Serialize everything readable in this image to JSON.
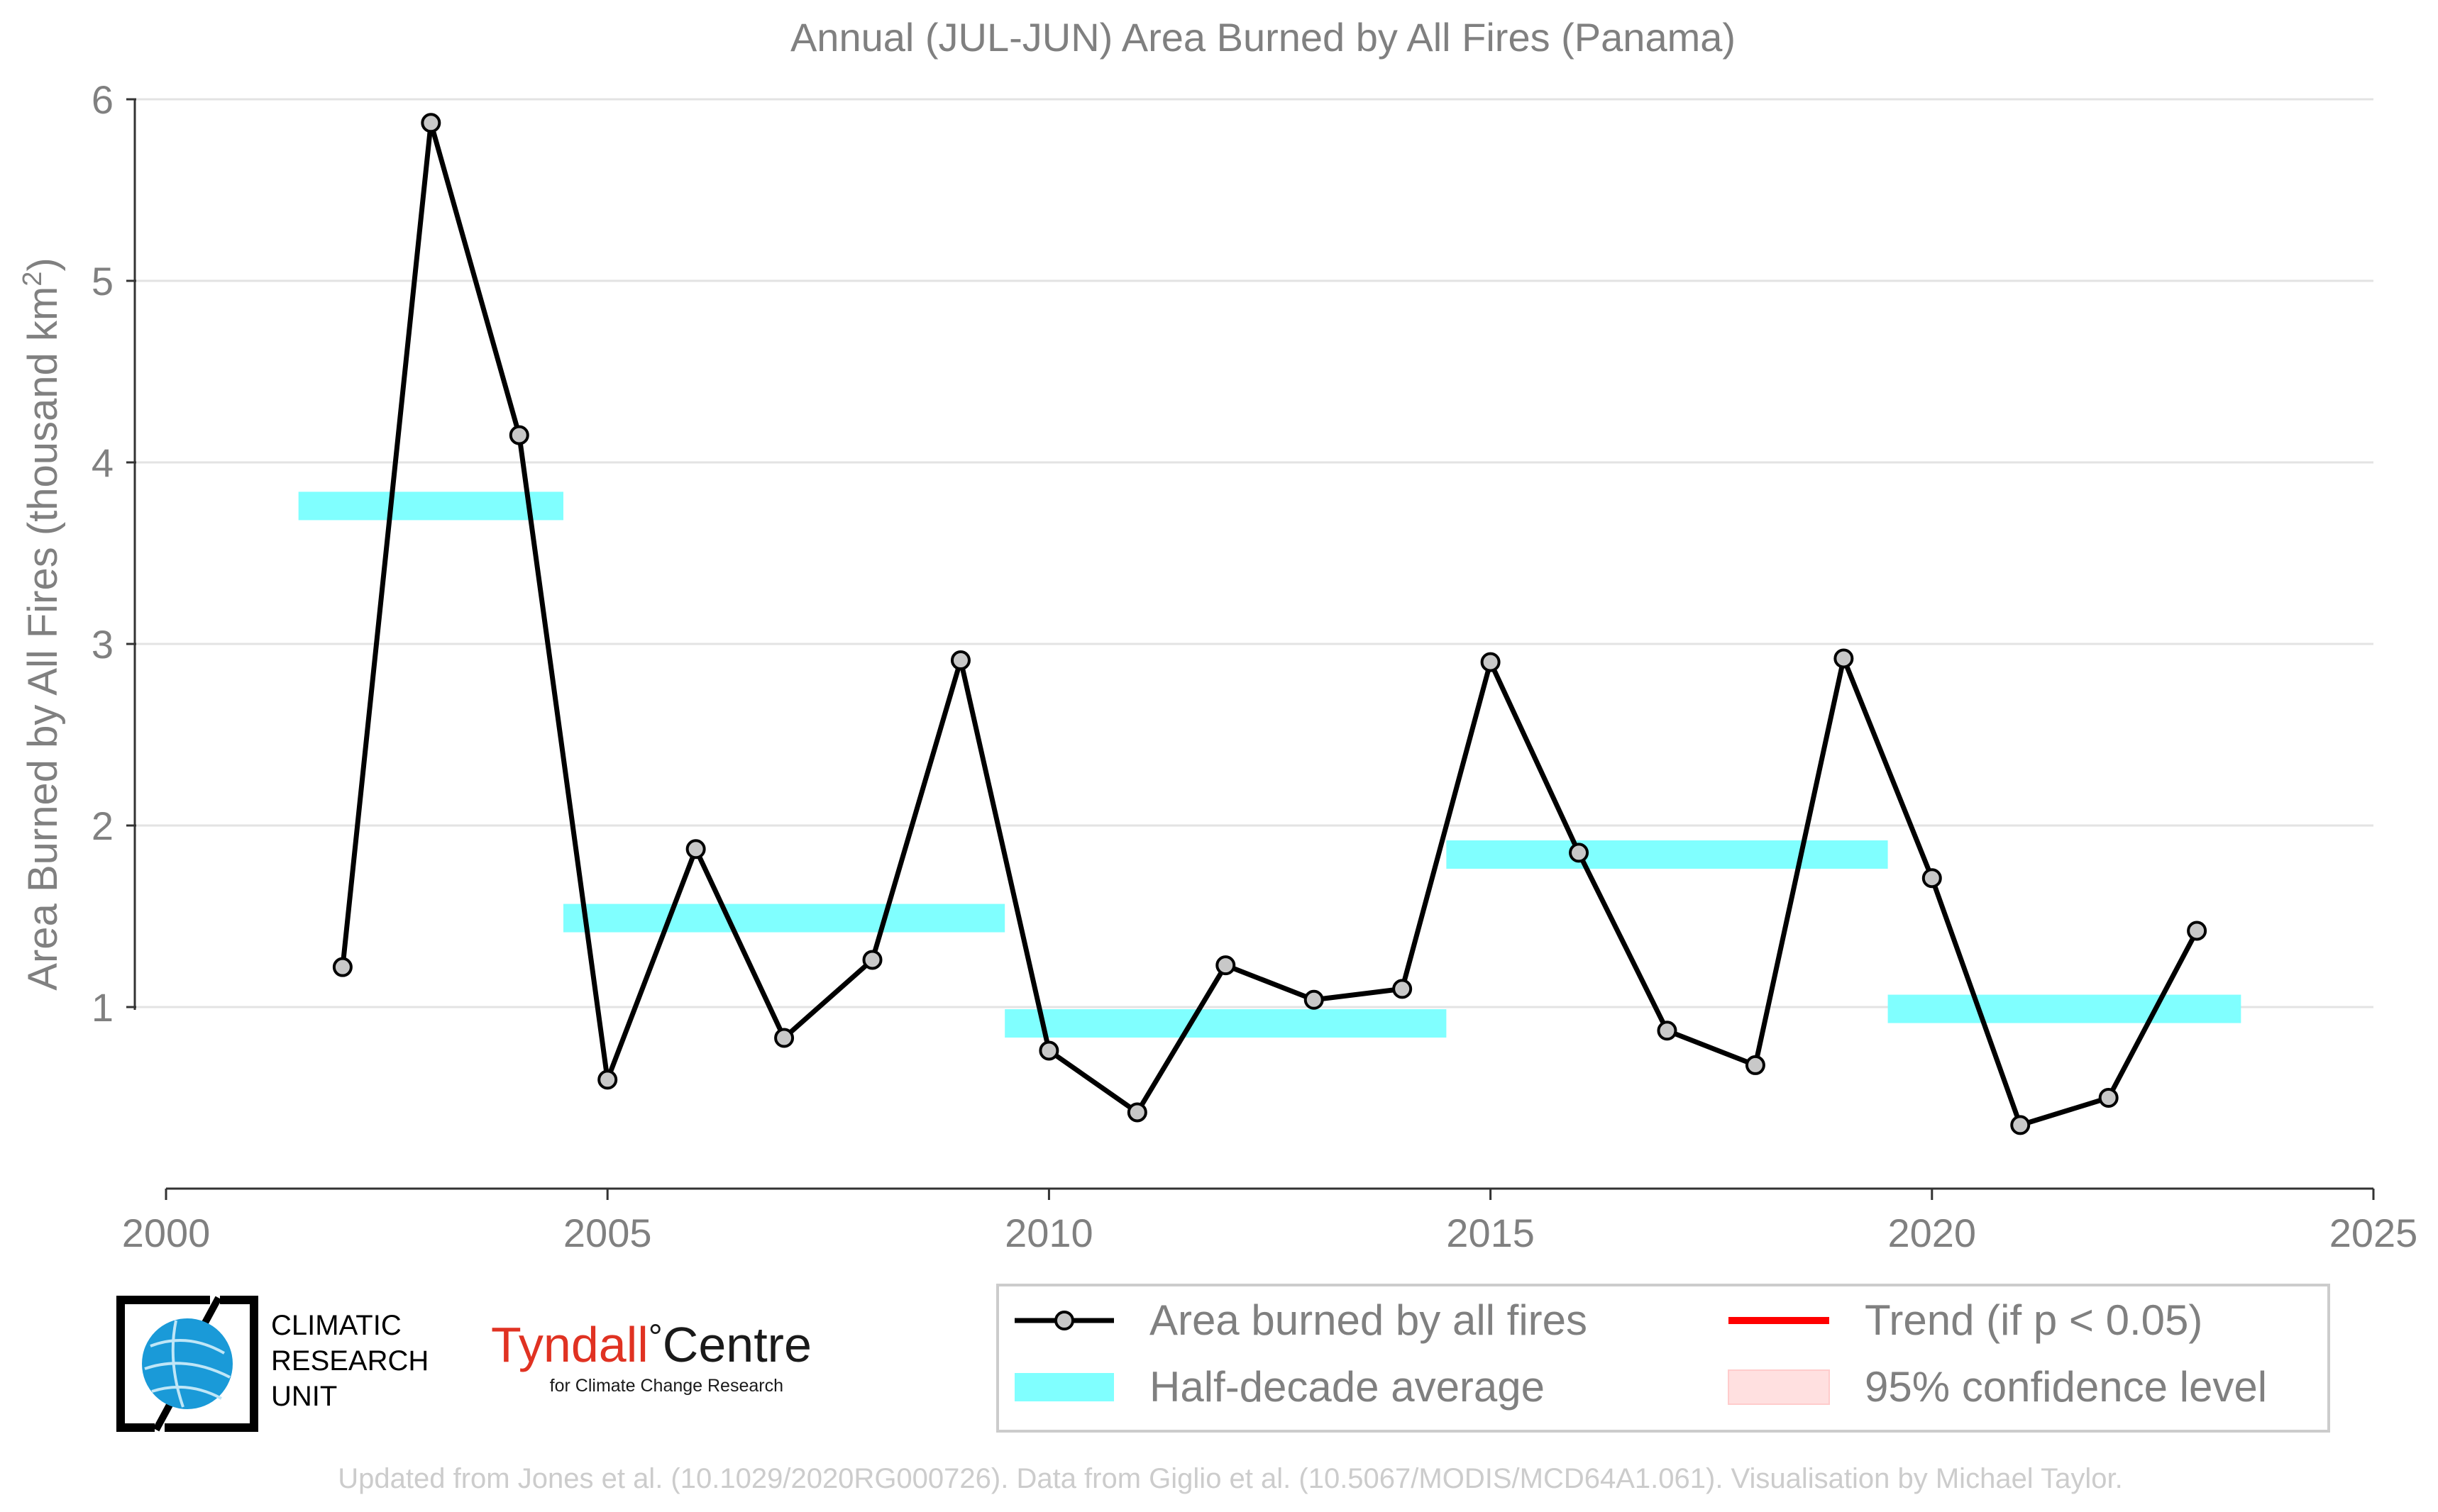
{
  "chart_data": {
    "type": "line",
    "title": "Annual (JUL-JUN) Area Burned by All Fires (Panama)",
    "xlabel": "",
    "ylabel": "Area Burned by All Fires (thousand km",
    "ylabel_sup": "2",
    "ylabel_end": ")",
    "xlim": [
      2000,
      2025
    ],
    "ylim": [
      0,
      6
    ],
    "x_ticks": [
      2000,
      2005,
      2010,
      2015,
      2020,
      2025
    ],
    "y_ticks": [
      1,
      2,
      3,
      4,
      5,
      6
    ],
    "grid": true,
    "legend_position": "bottom-right",
    "series": [
      {
        "name": "Area burned by all fires",
        "color": "#000000",
        "marker_color": "#c8c8c8",
        "points": [
          {
            "x": 2002,
            "y": 1.22
          },
          {
            "x": 2003,
            "y": 5.87
          },
          {
            "x": 2004,
            "y": 4.15
          },
          {
            "x": 2005,
            "y": 0.6
          },
          {
            "x": 2006,
            "y": 1.87
          },
          {
            "x": 2007,
            "y": 0.83
          },
          {
            "x": 2008,
            "y": 1.26
          },
          {
            "x": 2009,
            "y": 2.91
          },
          {
            "x": 2010,
            "y": 0.76
          },
          {
            "x": 2011,
            "y": 0.42
          },
          {
            "x": 2012,
            "y": 1.23
          },
          {
            "x": 2013,
            "y": 1.04
          },
          {
            "x": 2014,
            "y": 1.1
          },
          {
            "x": 2015,
            "y": 2.9
          },
          {
            "x": 2016,
            "y": 1.85
          },
          {
            "x": 2017,
            "y": 0.87
          },
          {
            "x": 2018,
            "y": 0.68
          },
          {
            "x": 2019,
            "y": 2.92
          },
          {
            "x": 2020,
            "y": 1.71
          },
          {
            "x": 2021,
            "y": 0.35
          },
          {
            "x": 2022,
            "y": 0.5
          },
          {
            "x": 2023,
            "y": 1.42
          }
        ]
      }
    ],
    "half_decade_averages": {
      "name": "Half-decade average",
      "color": "#80ffff",
      "bands": [
        {
          "x_start": 2001.5,
          "x_end": 2004.5,
          "y": 3.76
        },
        {
          "x_start": 2004.5,
          "x_end": 2009.5,
          "y": 1.49
        },
        {
          "x_start": 2009.5,
          "x_end": 2014.5,
          "y": 0.91
        },
        {
          "x_start": 2014.5,
          "x_end": 2019.5,
          "y": 1.84
        },
        {
          "x_start": 2019.5,
          "x_end": 2023.5,
          "y": 0.99
        }
      ]
    },
    "legend": [
      {
        "label": "Area burned by all fires",
        "kind": "line-marker",
        "color": "#000000"
      },
      {
        "label": "Half-decade average",
        "kind": "band",
        "color": "#80ffff"
      },
      {
        "label": "Trend (if p < 0.05)",
        "kind": "line",
        "color": "#ff0000"
      },
      {
        "label": "95% confidence level",
        "kind": "band",
        "color": "#ffe0e0"
      }
    ]
  },
  "logos": {
    "cru_lines": [
      "CLIMATIC",
      "RESEARCH",
      "UNIT"
    ],
    "tyndall_name": "Tyndall",
    "tyndall_degree": "°",
    "tyndall_centre": "Centre",
    "tyndall_sub": "for Climate Change Research"
  },
  "footer": "Updated from Jones et al. (10.1029/2020RG000726). Data from Giglio et al. (10.5067/MODIS/MCD64A1.061). Visualisation by Michael Taylor."
}
